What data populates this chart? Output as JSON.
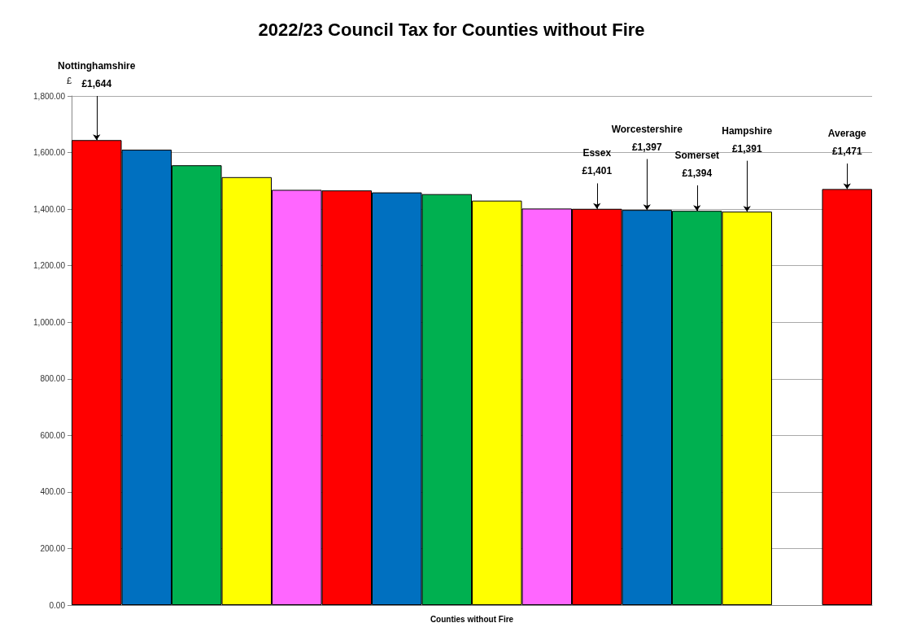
{
  "chart_data": {
    "type": "bar",
    "title": "2022/23 Council Tax for Counties without Fire",
    "xlabel": "Counties without Fire",
    "ylabel": "£",
    "categories": [
      null,
      null,
      null,
      null,
      null,
      null,
      null,
      null,
      null,
      null,
      null,
      null,
      null,
      null,
      null,
      null
    ],
    "values": [
      1644,
      1610,
      1555,
      1513,
      1468,
      1466,
      1459,
      1453,
      1430,
      1402,
      1401,
      1397,
      1394,
      1391,
      null,
      1471
    ],
    "colors": [
      "#ff0000",
      "#0070c0",
      "#00b050",
      "#ffff00",
      "#ff66ff",
      "#ff0000",
      "#0070c0",
      "#00b050",
      "#ffff00",
      "#ff66ff",
      "#ff0000",
      "#0070c0",
      "#00b050",
      "#ffff00",
      "#ffffff",
      "#ff0000"
    ],
    "value_labels": [
      "Nottinghamshire\n£1,644",
      null,
      null,
      null,
      null,
      null,
      null,
      null,
      null,
      null,
      "Essex\n£1,401",
      "Worcestershire\n£1,397",
      "Somerset\n£1,394",
      "Hampshire\n£1,391",
      null,
      "Average\n£1,471"
    ],
    "ylim": [
      0,
      1800
    ],
    "yticks": [
      {
        "value": 0,
        "label": "0.00"
      },
      {
        "value": 200,
        "label": "200.00"
      },
      {
        "value": 400,
        "label": "400.00"
      },
      {
        "value": 600,
        "label": "600.00"
      },
      {
        "value": 800,
        "label": "800.00"
      },
      {
        "value": 1000,
        "label": "1,000.00"
      },
      {
        "value": 1200,
        "label": "1,200.00"
      },
      {
        "value": 1400,
        "label": "1,400.00"
      },
      {
        "value": 1600,
        "label": "1,600.00"
      },
      {
        "value": 1800,
        "label": "1,800.00"
      }
    ],
    "grid": "y"
  }
}
